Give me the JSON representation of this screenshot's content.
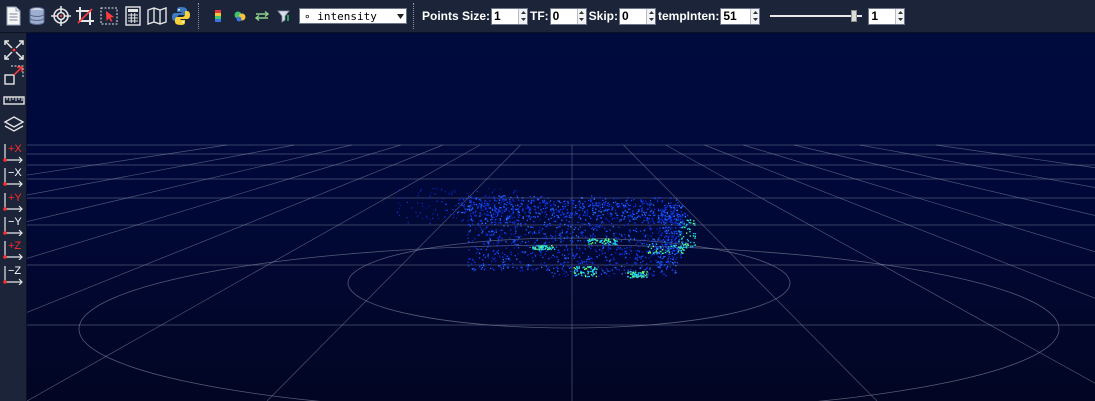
{
  "toolbar": {
    "icons": [
      {
        "name": "open-file-icon",
        "tooltip": ""
      },
      {
        "name": "database-icon"
      },
      {
        "name": "target-icon"
      },
      {
        "name": "crop-icon"
      },
      {
        "name": "select-icon"
      },
      {
        "name": "calculator-icon"
      },
      {
        "name": "map-icon"
      },
      {
        "name": "python-icon"
      }
    ],
    "color_icons": [
      "color-bar-icon",
      "color-palette-icon",
      "arrows-icon",
      "filter-icon"
    ],
    "color_field": {
      "selected": "∘ intensity"
    },
    "points_size": {
      "label": "Points Size:",
      "value": "1"
    },
    "tf": {
      "label": "TF:",
      "value": "0"
    },
    "skip": {
      "label": "Skip:",
      "value": "0"
    },
    "temp_inten": {
      "label": "tempInten:",
      "value": "51"
    },
    "slider": {
      "fraction": 0.94
    },
    "slider_value": "1"
  },
  "sidebar": {
    "tools": [
      "fit-view-icon",
      "zoom-extent-icon",
      "ruler-icon",
      "layers-icon"
    ],
    "axis_views": [
      "+X",
      "−X",
      "+Y",
      "−Y",
      "+Z",
      "−Z"
    ]
  },
  "colors": {
    "toolbar_bg": "#1b2438",
    "viewport_bg": "#000b3d",
    "grid": "#8d93a8",
    "axis_label_red": "#ff2b2b",
    "axis_label_white": "#ffffff"
  }
}
